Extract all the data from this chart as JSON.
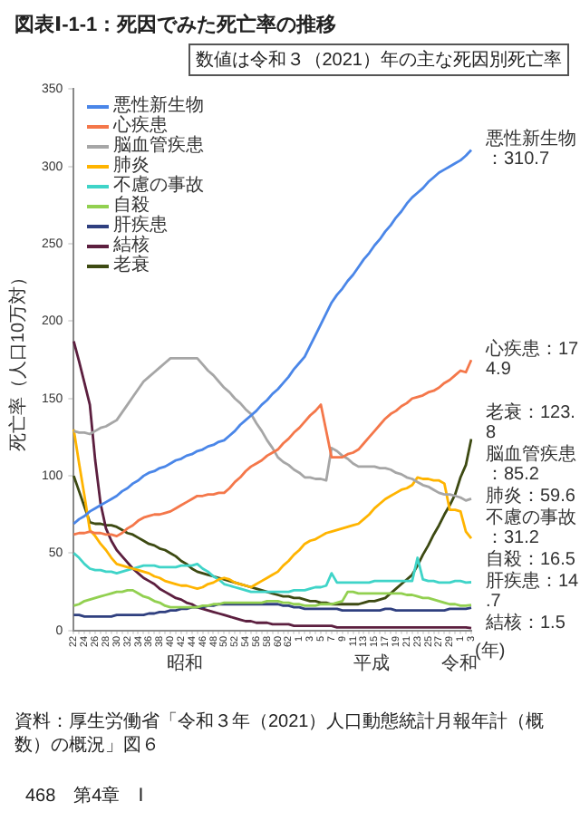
{
  "chart_data": {
    "type": "line",
    "title": "図表Ⅰ-1-1：死因でみた死亡率の推移",
    "subtitle": "数値は令和３（2021）年の主な死因別死亡率",
    "ylabel": "死亡率（人口10万対）",
    "categories": [
      "22",
      null,
      "24",
      null,
      "26",
      null,
      "28",
      null,
      "30",
      null,
      "32",
      null,
      "34",
      null,
      "36",
      null,
      "38",
      null,
      "40",
      null,
      "42",
      null,
      "44",
      null,
      "46",
      null,
      "48",
      null,
      "50",
      null,
      "52",
      null,
      "54",
      null,
      "56",
      null,
      "58",
      null,
      "60",
      null,
      "62",
      null,
      "1",
      null,
      "3",
      null,
      "5",
      null,
      "7",
      null,
      "9",
      null,
      "11",
      null,
      "13",
      null,
      "15",
      null,
      "17",
      null,
      "19",
      null,
      "21",
      null,
      "23",
      null,
      "25",
      null,
      "27",
      null,
      "29",
      null,
      "1",
      null,
      "3"
    ],
    "ylim": [
      0,
      350
    ],
    "yticks": [
      0,
      50,
      100,
      150,
      200,
      250,
      300,
      350
    ],
    "legend": "top left",
    "series": [
      {
        "name": "悪性新生物",
        "color": "#4a86e8",
        "values": [
          69,
          72,
          74,
          77,
          79,
          81,
          83,
          85,
          87,
          90,
          92,
          95,
          97,
          100,
          102,
          103,
          105,
          106,
          108,
          110,
          111,
          113,
          114,
          116,
          117,
          119,
          120,
          122,
          123,
          126,
          129,
          133,
          136,
          139,
          142,
          146,
          149,
          153,
          156,
          160,
          164,
          169,
          173,
          177,
          184,
          191,
          198,
          205,
          212,
          217,
          221,
          226,
          230,
          235,
          240,
          244,
          249,
          253,
          258,
          262,
          267,
          271,
          276,
          280,
          283,
          286,
          290,
          293,
          296,
          298,
          300,
          302,
          304,
          307,
          310.7
        ]
      },
      {
        "name": "心疾患",
        "color": "#f4774a",
        "values": [
          62,
          63,
          63,
          64,
          63,
          63,
          62,
          62,
          61,
          63,
          66,
          68,
          71,
          73,
          74,
          75,
          75,
          76,
          77,
          79,
          81,
          83,
          85,
          87,
          87,
          88,
          88,
          89,
          89,
          92,
          96,
          99,
          103,
          106,
          108,
          110,
          113,
          115,
          117,
          121,
          124,
          128,
          131,
          135,
          139,
          142,
          146,
          129,
          112,
          112,
          112,
          114,
          115,
          117,
          121,
          125,
          129,
          133,
          137,
          140,
          142,
          145,
          147,
          150,
          151,
          152,
          154,
          155,
          157,
          160,
          162,
          165,
          168,
          167,
          174.9
        ]
      },
      {
        "name": "脳血管疾患",
        "color": "#a6a6a6",
        "values": [
          129,
          128,
          128,
          127,
          129,
          131,
          132,
          134,
          136,
          141,
          146,
          151,
          156,
          161,
          164,
          167,
          170,
          173,
          176,
          176,
          176,
          176,
          176,
          176,
          172,
          168,
          165,
          161,
          157,
          154,
          150,
          147,
          143,
          140,
          134,
          129,
          123,
          118,
          112,
          109,
          107,
          104,
          102,
          99,
          99,
          98,
          98,
          97,
          118,
          116,
          113,
          111,
          108,
          106,
          106,
          106,
          106,
          105,
          105,
          104,
          102,
          101,
          99,
          98,
          96,
          94,
          93,
          91,
          89,
          88,
          88,
          87,
          86,
          84,
          85.2
        ]
      },
      {
        "name": "肺炎",
        "color": "#ffb400",
        "values": [
          130,
          108,
          87,
          65,
          61,
          56,
          52,
          47,
          43,
          42,
          41,
          40,
          39,
          38,
          37,
          35,
          34,
          32,
          31,
          30,
          29,
          29,
          28,
          27,
          28,
          30,
          31,
          33,
          34,
          33,
          31,
          30,
          29,
          28,
          30,
          32,
          34,
          36,
          38,
          42,
          45,
          49,
          52,
          56,
          58,
          59,
          61,
          63,
          64,
          65,
          66,
          67,
          68,
          69,
          72,
          75,
          79,
          82,
          85,
          87,
          89,
          91,
          92,
          94,
          99,
          98,
          98,
          97,
          97,
          95,
          78,
          78,
          77,
          64,
          59.6
        ]
      },
      {
        "name": "不慮の事故",
        "color": "#3fd4c8",
        "values": [
          50,
          47,
          43,
          40,
          39,
          39,
          38,
          38,
          37,
          38,
          39,
          40,
          41,
          42,
          42,
          42,
          41,
          41,
          41,
          41,
          42,
          42,
          42,
          43,
          40,
          38,
          35,
          33,
          30,
          29,
          28,
          27,
          26,
          25,
          25,
          25,
          25,
          25,
          25,
          25,
          25,
          26,
          26,
          26,
          27,
          28,
          28,
          29,
          37,
          31,
          31,
          31,
          31,
          31,
          31,
          31,
          32,
          32,
          32,
          32,
          32,
          32,
          32,
          32,
          47,
          33,
          32,
          32,
          31,
          31,
          31,
          32,
          32,
          31,
          31.2
        ]
      },
      {
        "name": "自殺",
        "color": "#92d050",
        "values": [
          16,
          17,
          19,
          20,
          21,
          22,
          23,
          24,
          25,
          25,
          26,
          26,
          24,
          22,
          21,
          19,
          18,
          16,
          15,
          15,
          15,
          15,
          15,
          15,
          16,
          16,
          17,
          17,
          18,
          18,
          18,
          18,
          18,
          18,
          18,
          18,
          19,
          19,
          19,
          18,
          18,
          17,
          17,
          16,
          16,
          16,
          17,
          17,
          17,
          18,
          19,
          25,
          25,
          24,
          24,
          24,
          24,
          24,
          24,
          24,
          24,
          24,
          23,
          23,
          22,
          21,
          21,
          20,
          19,
          18,
          17,
          17,
          16,
          16,
          16.5
        ]
      },
      {
        "name": "肝疾患",
        "color": "#2f3f7f",
        "values": [
          10,
          10,
          9,
          9,
          9,
          9,
          9,
          9,
          10,
          10,
          10,
          10,
          10,
          10,
          11,
          11,
          12,
          12,
          13,
          13,
          14,
          14,
          15,
          15,
          15,
          16,
          16,
          17,
          17,
          17,
          17,
          17,
          17,
          17,
          17,
          17,
          17,
          17,
          17,
          16,
          16,
          15,
          15,
          14,
          14,
          14,
          14,
          14,
          14,
          14,
          13,
          13,
          13,
          13,
          13,
          13,
          13,
          13,
          14,
          14,
          13,
          13,
          13,
          13,
          13,
          13,
          13,
          13,
          13,
          13,
          14,
          14,
          14,
          14,
          14.7
        ]
      },
      {
        "name": "結核",
        "color": "#5c1f3f",
        "values": [
          187,
          174,
          160,
          146,
          110,
          82,
          66,
          58,
          52,
          48,
          44,
          40,
          37,
          34,
          32,
          30,
          27,
          25,
          23,
          21,
          20,
          18,
          17,
          15,
          14,
          13,
          12,
          11,
          10,
          9,
          8,
          7,
          6,
          6,
          5,
          5,
          5,
          4,
          4,
          4,
          4,
          3,
          3,
          3,
          3,
          3,
          3,
          3,
          3,
          2,
          2,
          2,
          2,
          2,
          2,
          2,
          2,
          2,
          2,
          2,
          2,
          2,
          2,
          2,
          2,
          2,
          2,
          2,
          2,
          2,
          2,
          2,
          2,
          2,
          1.5
        ]
      },
      {
        "name": "老衰",
        "color": "#3d4a12",
        "values": [
          100,
          90,
          80,
          70,
          69,
          69,
          68,
          68,
          67,
          65,
          63,
          62,
          60,
          58,
          56,
          55,
          53,
          52,
          50,
          48,
          45,
          43,
          40,
          38,
          37,
          36,
          35,
          34,
          33,
          32,
          31,
          30,
          29,
          28,
          27,
          26,
          25,
          24,
          23,
          22,
          22,
          21,
          21,
          20,
          19,
          19,
          18,
          18,
          17,
          17,
          17,
          17,
          17,
          17,
          18,
          19,
          19,
          20,
          21,
          24,
          27,
          30,
          33,
          36,
          42,
          49,
          55,
          62,
          68,
          75,
          81,
          88,
          99,
          107,
          123.8
        ]
      }
    ],
    "annotations": [
      "悪性新生物：310.7",
      "心疾患：174.9",
      "老衰：123.8",
      "脳血管疾患：85.2",
      "肺炎：59.6",
      "不慮の事故：31.2",
      "自殺：16.5",
      "肝疾患：14.7",
      "結核：1.5",
      "昭和",
      "平成",
      "令和",
      "(年)",
      "資料：厚生労働省「令和３年（2021）人口動態統計月報年計（概数）の概況」図６",
      "468　第4章　Ⅰ"
    ]
  }
}
